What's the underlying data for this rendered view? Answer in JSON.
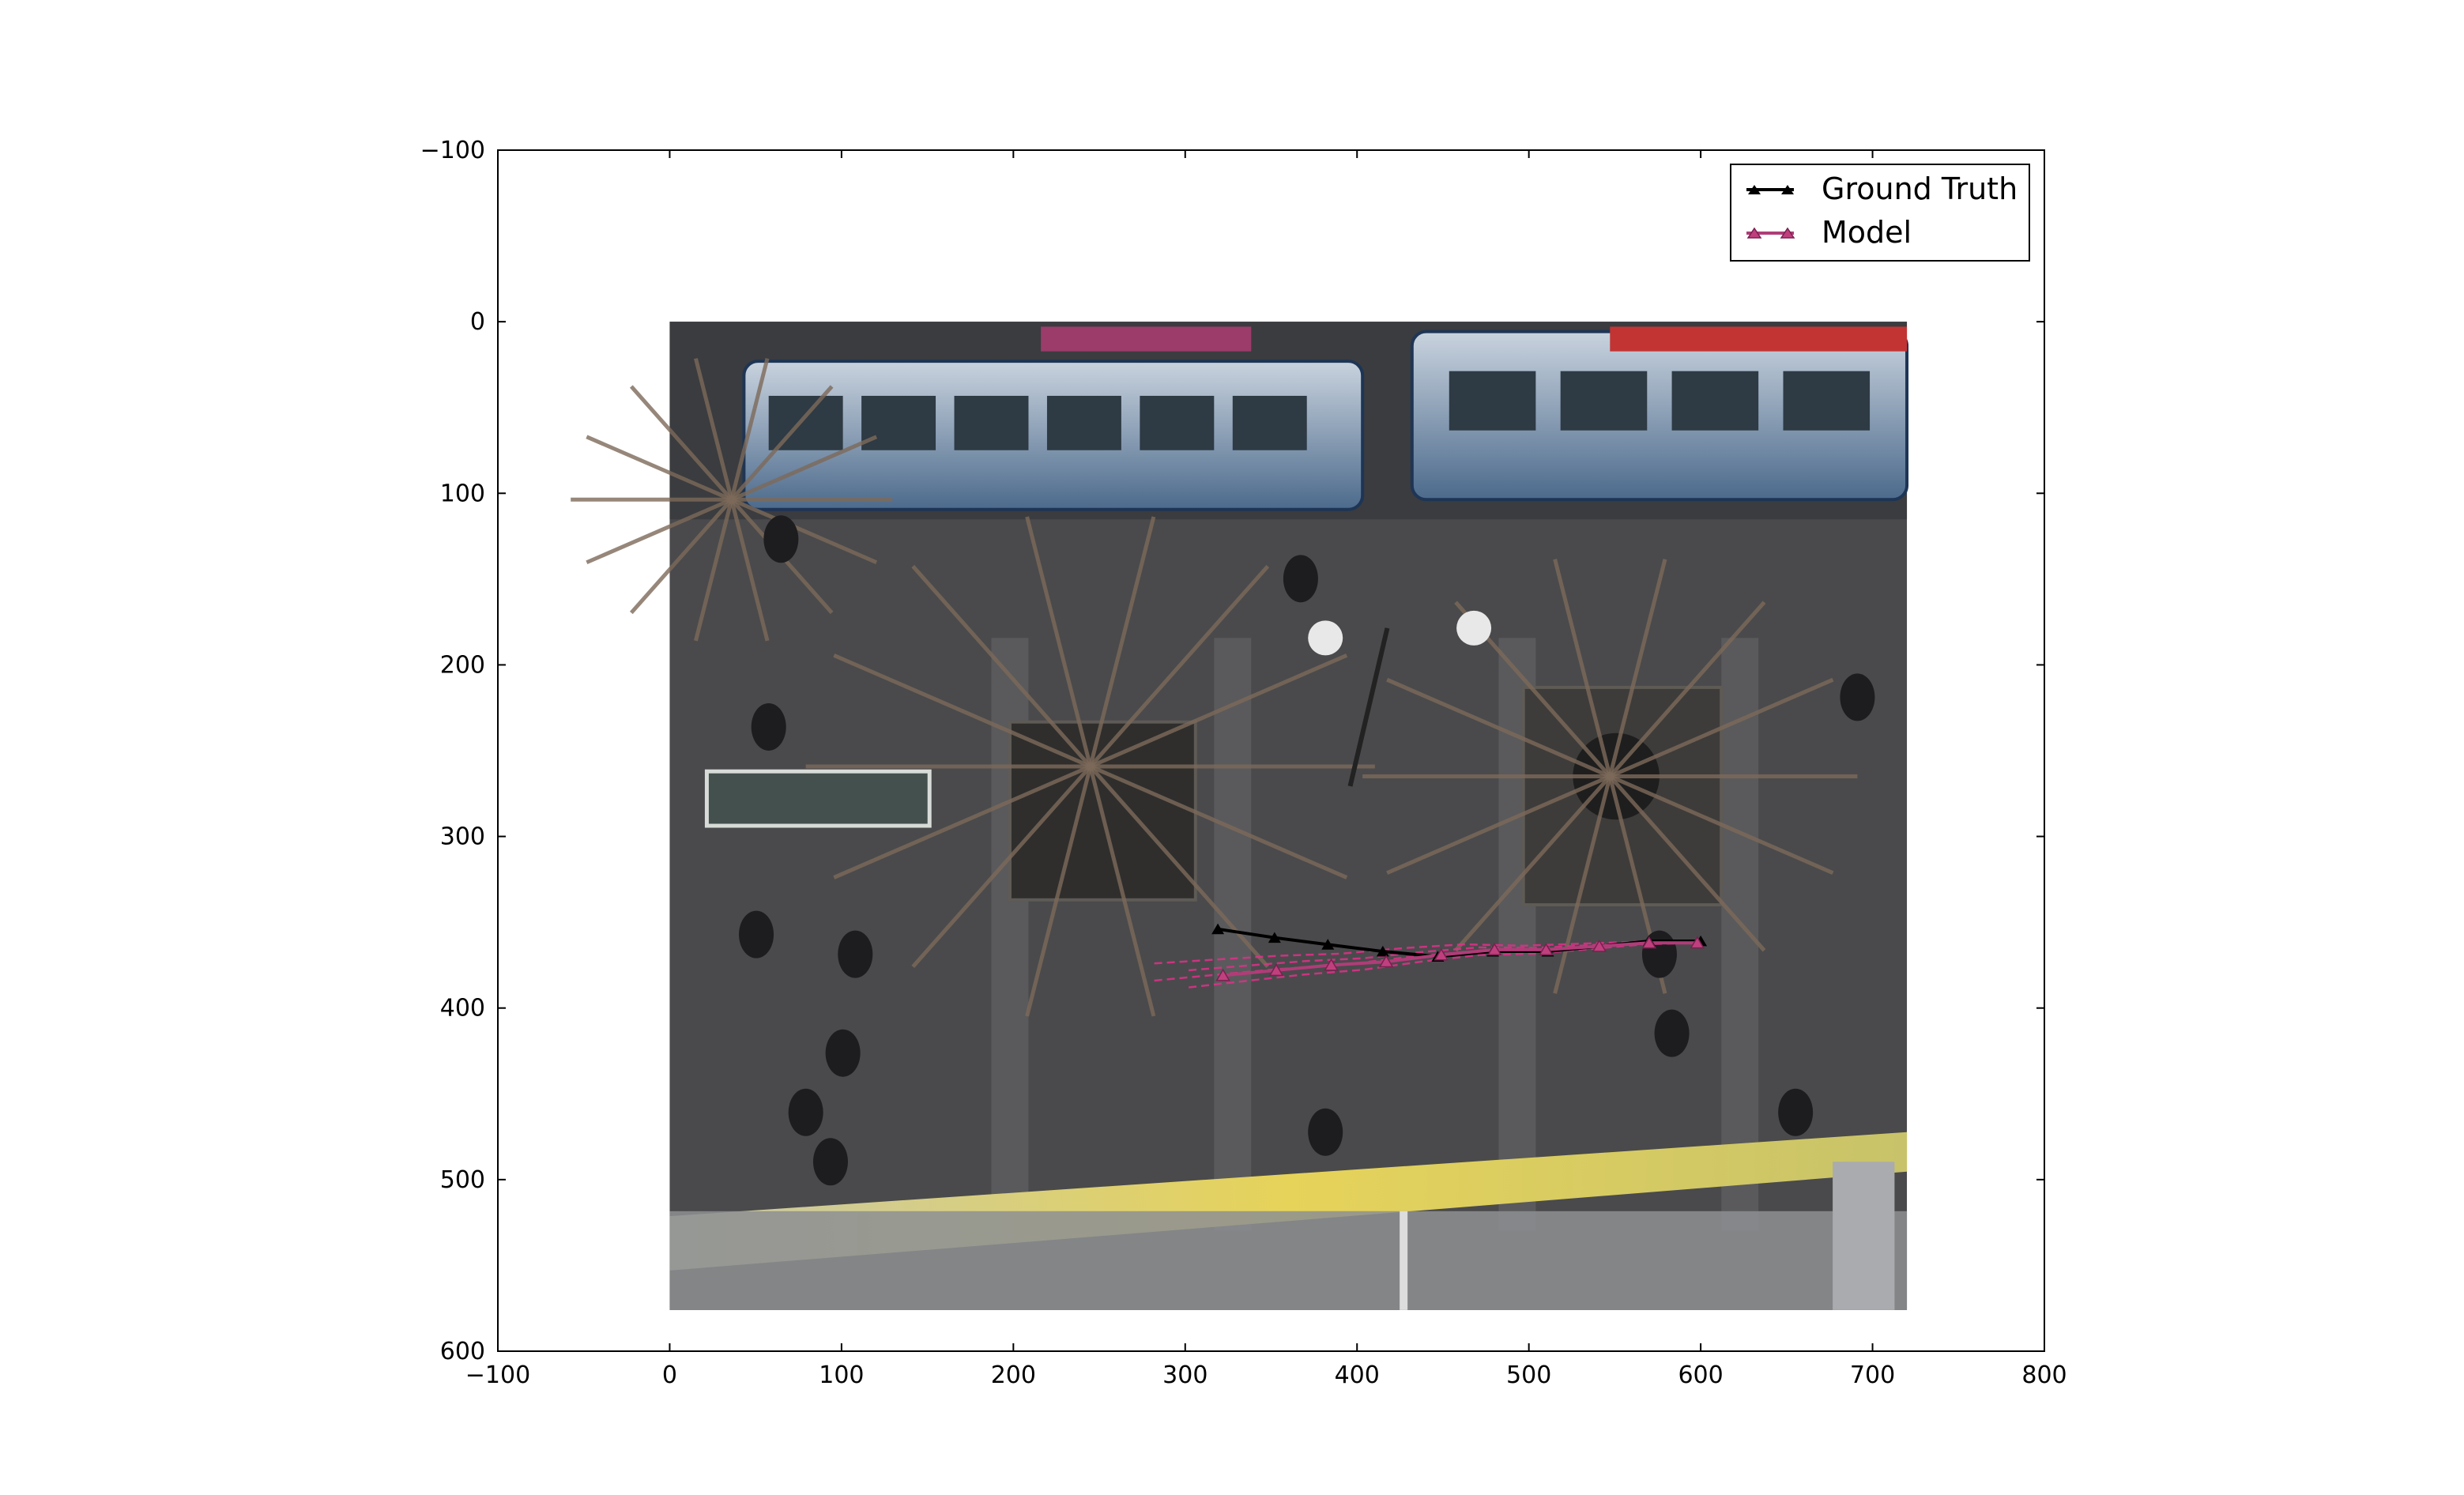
{
  "chart_data": {
    "type": "line",
    "title": "",
    "xlabel": "",
    "ylabel": "",
    "xlim": [
      -100,
      800
    ],
    "ylim": [
      600,
      -100
    ],
    "y_inverted": true,
    "grid": false,
    "legend_position": "top-right",
    "xticks": [
      -100,
      0,
      100,
      200,
      300,
      400,
      500,
      600,
      700,
      800
    ],
    "yticks": [
      -100,
      0,
      100,
      200,
      300,
      400,
      500,
      600
    ],
    "xtick_labels": [
      "−100",
      "0",
      "100",
      "200",
      "300",
      "400",
      "500",
      "600",
      "700",
      "800"
    ],
    "ytick_labels": [
      "−100",
      "0",
      "100",
      "200",
      "300",
      "400",
      "500",
      "600"
    ],
    "background_image": {
      "description_icon": "photo-street-scene-overhead",
      "extent": [
        0,
        720,
        576,
        0
      ]
    },
    "series": [
      {
        "name": "Ground Truth",
        "color": "#000000",
        "marker": "triangle",
        "x": [
          319,
          352,
          383,
          415,
          447,
          479,
          511,
          541,
          570,
          600
        ],
        "y": [
          354,
          359,
          363,
          367,
          370,
          367,
          367,
          364,
          361,
          361
        ]
      },
      {
        "name": "Model",
        "color": "#b03c78",
        "marker": "triangle-open",
        "uncertainty_color": "#e0308a",
        "x": [
          322,
          353,
          385,
          417,
          449,
          480,
          510,
          541,
          570,
          598
        ],
        "y": [
          381,
          378,
          375,
          373,
          369,
          366,
          366,
          364,
          362,
          362
        ]
      }
    ]
  }
}
